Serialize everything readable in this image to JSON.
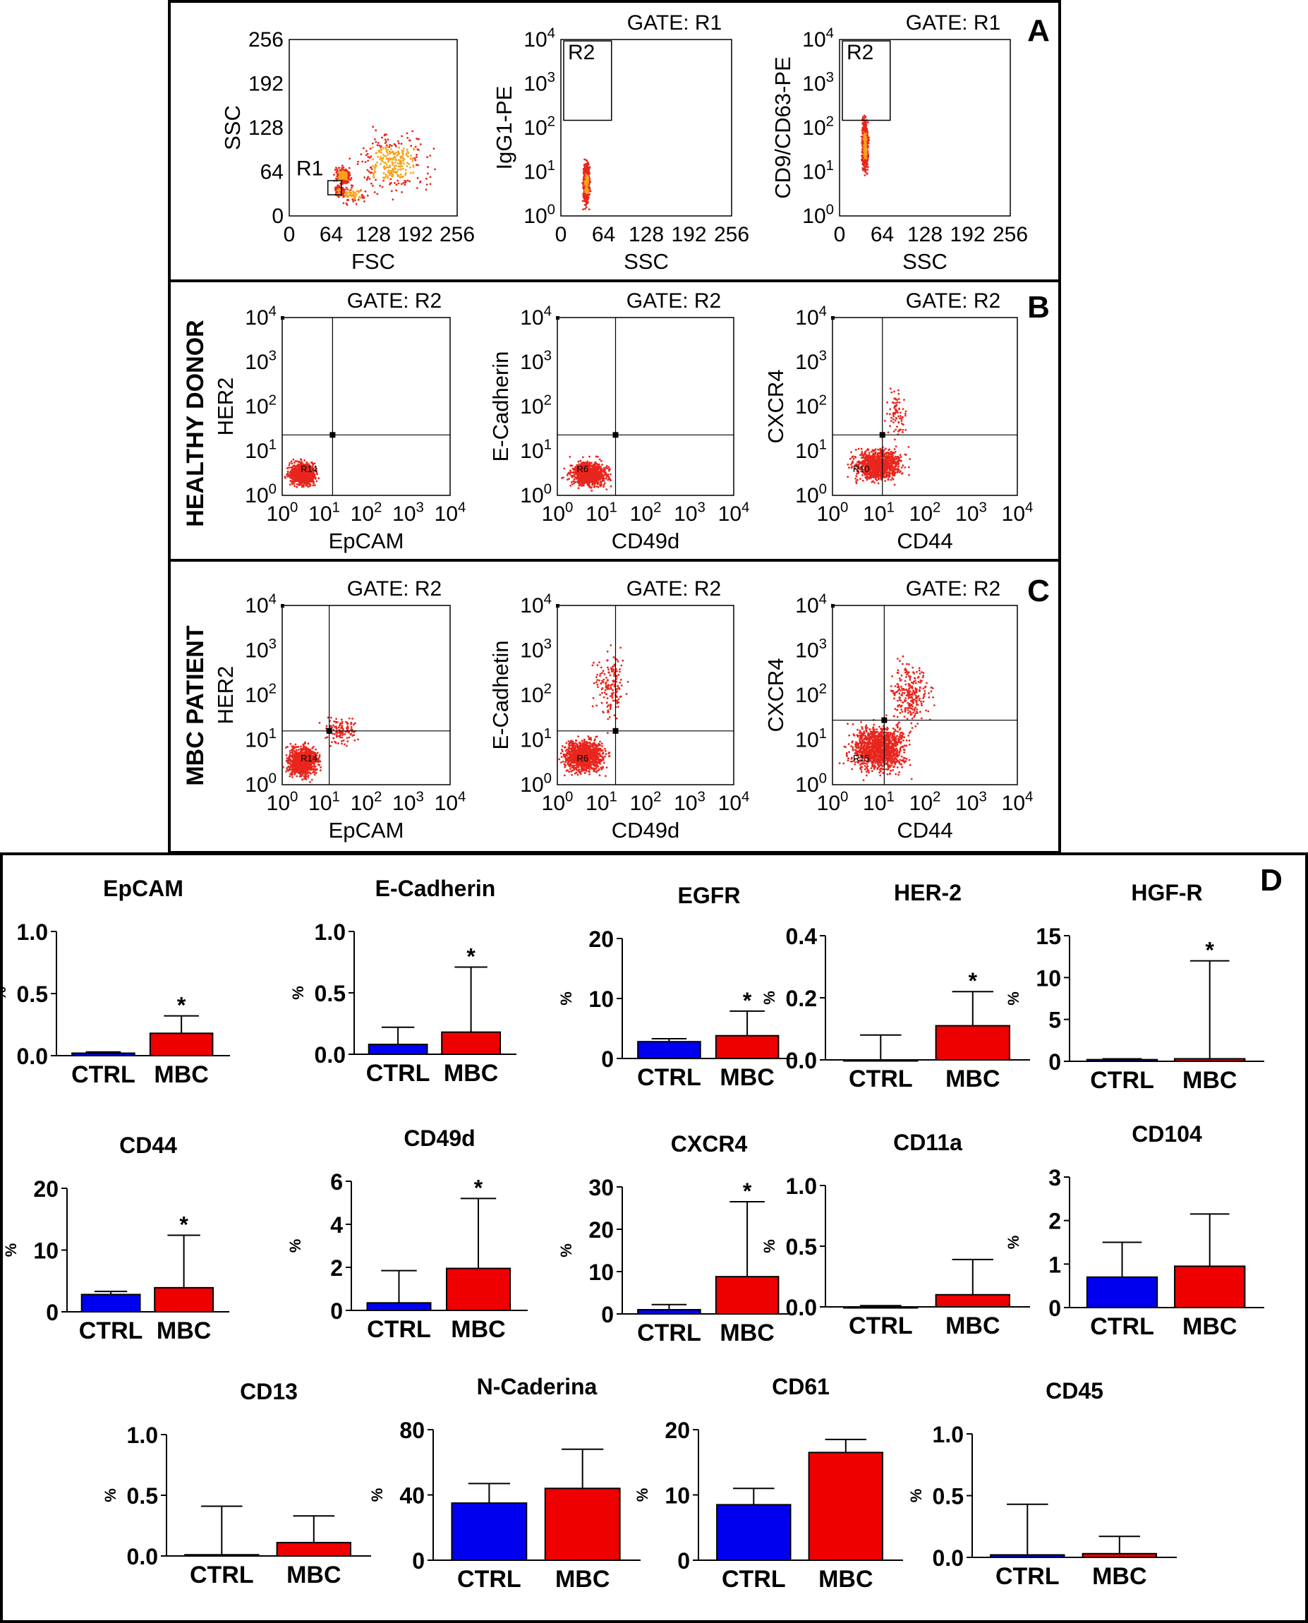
{
  "panel_letters": [
    "A",
    "B",
    "C",
    "D"
  ],
  "row_labels": {
    "healthy": "HEALTHY DONOR",
    "mbc": "MBC PATIENT"
  },
  "colors": {
    "ctrl_bar": "#0000ee",
    "mbc_bar": "#ee0000",
    "dots": "#e8261e",
    "dense": "#f7a21a"
  },
  "chart_data": [
    {
      "type": "scatter",
      "panel": "A",
      "title": "",
      "xlabel": "FSC",
      "ylabel": "SSC",
      "scale": "linear",
      "xticks": [
        "0",
        "64",
        "128",
        "192",
        "256"
      ],
      "yticks": [
        "0",
        "64",
        "128",
        "192",
        "256"
      ],
      "xlim": [
        0,
        256
      ],
      "ylim": [
        0,
        256
      ],
      "gate_label": "R1",
      "gate_box": [
        58,
        76,
        20,
        34
      ]
    },
    {
      "type": "scatter",
      "panel": "A",
      "title": "GATE: R1",
      "xlabel": "SSC",
      "ylabel": "IgG1-PE",
      "scale": "linx-logy",
      "xticks": [
        "0",
        "64",
        "128",
        "192",
        "256"
      ],
      "yticks": [
        "10^0",
        "10^1",
        "10^2",
        "10^3",
        "10^4"
      ],
      "xlim": [
        0,
        256
      ],
      "ylim": [
        1,
        10000
      ],
      "gate_label": "R2"
    },
    {
      "type": "scatter",
      "panel": "A",
      "title": "GATE: R1",
      "xlabel": "SSC",
      "ylabel": "CD9/CD63-PE",
      "scale": "linx-logy",
      "xticks": [
        "0",
        "64",
        "128",
        "192",
        "256"
      ],
      "yticks": [
        "10^0",
        "10^1",
        "10^2",
        "10^3",
        "10^4"
      ],
      "xlim": [
        0,
        256
      ],
      "ylim": [
        1,
        10000
      ],
      "gate_label": "R2"
    },
    {
      "type": "scatter",
      "panel": "B",
      "title": "GATE: R2",
      "xlabel": "EpCAM",
      "ylabel": "HER2",
      "scale": "log",
      "xticks": [
        "10^0",
        "10^1",
        "10^2",
        "10^3",
        "10^4"
      ],
      "yticks": [
        "10^0",
        "10^1",
        "10^2",
        "10^3",
        "10^4"
      ],
      "region": "R14"
    },
    {
      "type": "scatter",
      "panel": "B",
      "title": "GATE: R2",
      "xlabel": "CD49d",
      "ylabel": "E-Cadherin",
      "scale": "log",
      "xticks": [
        "10^0",
        "10^1",
        "10^2",
        "10^3",
        "10^4"
      ],
      "yticks": [
        "10^0",
        "10^1",
        "10^2",
        "10^3",
        "10^4"
      ],
      "region": "R6"
    },
    {
      "type": "scatter",
      "panel": "B",
      "title": "GATE: R2",
      "xlabel": "CD44",
      "ylabel": "CXCR4",
      "scale": "log",
      "xticks": [
        "10^0",
        "10^1",
        "10^2",
        "10^3",
        "10^4"
      ],
      "yticks": [
        "10^0",
        "10^1",
        "10^2",
        "10^3",
        "10^4"
      ],
      "region": "R10"
    },
    {
      "type": "scatter",
      "panel": "C",
      "title": "GATE: R2",
      "xlabel": "EpCAM",
      "ylabel": "HER2",
      "scale": "log",
      "xticks": [
        "10^0",
        "10^1",
        "10^2",
        "10^3",
        "10^4"
      ],
      "yticks": [
        "10^0",
        "10^1",
        "10^2",
        "10^3",
        "10^4"
      ],
      "region": "R14"
    },
    {
      "type": "scatter",
      "panel": "C",
      "title": "GATE: R2",
      "xlabel": "CD49d",
      "ylabel": "E-Cadhetin",
      "scale": "log",
      "xticks": [
        "10^0",
        "10^1",
        "10^2",
        "10^3",
        "10^4"
      ],
      "yticks": [
        "10^0",
        "10^1",
        "10^2",
        "10^3",
        "10^4"
      ],
      "region": "R6"
    },
    {
      "type": "scatter",
      "panel": "C",
      "title": "GATE: R2",
      "xlabel": "CD44",
      "ylabel": "CXCR4",
      "scale": "log",
      "xticks": [
        "10^0",
        "10^1",
        "10^2",
        "10^3",
        "10^4"
      ],
      "yticks": [
        "10^0",
        "10^1",
        "10^2",
        "10^3",
        "10^4"
      ],
      "region": "R15"
    },
    {
      "type": "bar",
      "panel": "D",
      "title": "EpCAM",
      "ylabel": "%",
      "categories": [
        "CTRL",
        "MBC"
      ],
      "values": [
        0.02,
        0.18
      ],
      "errors": [
        0.03,
        0.32
      ],
      "ylim": [
        0,
        1.0
      ],
      "yticks": [
        "0.0",
        "0.5",
        "1.0"
      ],
      "sig": true
    },
    {
      "type": "bar",
      "panel": "D",
      "title": "E-Cadherin",
      "ylabel": "%",
      "categories": [
        "CTRL",
        "MBC"
      ],
      "values": [
        0.08,
        0.18
      ],
      "errors": [
        0.22,
        0.71
      ],
      "ylim": [
        0,
        1.0
      ],
      "yticks": [
        "0.0",
        "0.5",
        "1.0"
      ],
      "sig": true
    },
    {
      "type": "bar",
      "panel": "D",
      "title": "EGFR",
      "ylabel": "%",
      "categories": [
        "CTRL",
        "MBC"
      ],
      "values": [
        2.8,
        3.8
      ],
      "errors": [
        3.3,
        7.9
      ],
      "ylim": [
        0,
        20
      ],
      "yticks": [
        "0",
        "10",
        "20"
      ],
      "sig": true
    },
    {
      "type": "bar",
      "panel": "D",
      "title": "HER-2",
      "ylabel": "%",
      "categories": [
        "CTRL",
        "MBC"
      ],
      "values": [
        0.0,
        0.11
      ],
      "errors": [
        0.08,
        0.22
      ],
      "ylim": [
        0,
        0.4
      ],
      "yticks": [
        "0.0",
        "0.2",
        "0.4"
      ],
      "sig": true
    },
    {
      "type": "bar",
      "panel": "D",
      "title": "HGF-R",
      "ylabel": "%",
      "categories": [
        "CTRL",
        "MBC"
      ],
      "values": [
        0.2,
        0.3
      ],
      "errors": [
        0.3,
        12.0
      ],
      "ylim": [
        0,
        15
      ],
      "yticks": [
        "0",
        "5",
        "10",
        "15"
      ],
      "sig": true
    },
    {
      "type": "bar",
      "panel": "D",
      "title": "CD44",
      "ylabel": "%",
      "categories": [
        "CTRL",
        "MBC"
      ],
      "values": [
        2.8,
        3.9
      ],
      "errors": [
        3.3,
        12.4
      ],
      "ylim": [
        0,
        20
      ],
      "yticks": [
        "0",
        "10",
        "20"
      ],
      "sig": true
    },
    {
      "type": "bar",
      "panel": "D",
      "title": "CD49d",
      "ylabel": "%",
      "categories": [
        "CTRL",
        "MBC"
      ],
      "values": [
        0.35,
        1.95
      ],
      "errors": [
        1.85,
        5.2
      ],
      "ylim": [
        0,
        6
      ],
      "yticks": [
        "0",
        "2",
        "4",
        "6"
      ],
      "sig": true
    },
    {
      "type": "bar",
      "panel": "D",
      "title": "CXCR4",
      "ylabel": "%",
      "categories": [
        "CTRL",
        "MBC"
      ],
      "values": [
        1.0,
        8.8
      ],
      "errors": [
        2.2,
        26.5
      ],
      "ylim": [
        0,
        30
      ],
      "yticks": [
        "0",
        "10",
        "20",
        "30"
      ],
      "sig": true
    },
    {
      "type": "bar",
      "panel": "D",
      "title": "CD11a",
      "ylabel": "%",
      "categories": [
        "CTRL",
        "MBC"
      ],
      "values": [
        0.0,
        0.1
      ],
      "errors": [
        0.01,
        0.39
      ],
      "ylim": [
        0,
        1.0
      ],
      "yticks": [
        "0.0",
        "0.5",
        "1.0"
      ],
      "sig": false
    },
    {
      "type": "bar",
      "panel": "D",
      "title": "CD104",
      "ylabel": "%",
      "categories": [
        "CTRL",
        "MBC"
      ],
      "values": [
        0.7,
        0.95
      ],
      "errors": [
        1.5,
        2.15
      ],
      "ylim": [
        0,
        3
      ],
      "yticks": [
        "0",
        "1",
        "2",
        "3"
      ],
      "sig": false
    },
    {
      "type": "bar",
      "panel": "D",
      "title": "CD13",
      "ylabel": "%",
      "categories": [
        "CTRL",
        "MBC"
      ],
      "values": [
        0.01,
        0.11
      ],
      "errors": [
        0.41,
        0.33
      ],
      "ylim": [
        0,
        1.0
      ],
      "yticks": [
        "0.0",
        "0.5",
        "1.0"
      ],
      "sig": false
    },
    {
      "type": "bar",
      "panel": "D",
      "title": "N-Caderina",
      "ylabel": "%",
      "categories": [
        "CTRL",
        "MBC"
      ],
      "values": [
        35,
        44
      ],
      "errors": [
        47,
        68
      ],
      "ylim": [
        0,
        80
      ],
      "yticks": [
        "0",
        "40",
        "80"
      ],
      "sig": false
    },
    {
      "type": "bar",
      "panel": "D",
      "title": "CD61",
      "ylabel": "%",
      "categories": [
        "CTRL",
        "MBC"
      ],
      "values": [
        8.5,
        16.5
      ],
      "errors": [
        11.0,
        18.5
      ],
      "ylim": [
        0,
        20
      ],
      "yticks": [
        "0",
        "10",
        "20"
      ],
      "sig": false
    },
    {
      "type": "bar",
      "panel": "D",
      "title": "CD45",
      "ylabel": "%",
      "categories": [
        "CTRL",
        "MBC"
      ],
      "values": [
        0.02,
        0.03
      ],
      "errors": [
        0.43,
        0.17
      ],
      "ylim": [
        0,
        1.0
      ],
      "yticks": [
        "0.0",
        "0.5",
        "1.0"
      ],
      "sig": false
    }
  ]
}
